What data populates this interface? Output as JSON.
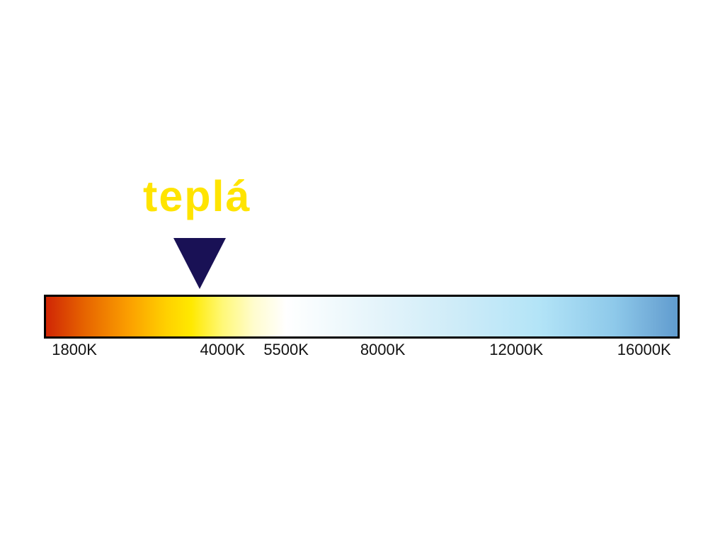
{
  "page": {
    "background_color": "#ffffff"
  },
  "annotation": {
    "label": "teplá",
    "label_color": "#ffe400",
    "pointer_color": "#191155",
    "pointer_pos_pct": 24.1
  },
  "scale": {
    "unit": "K",
    "bar_border_color": "#000000",
    "gradient_stops": [
      {
        "pos": 0,
        "color": "#d02605"
      },
      {
        "pos": 6,
        "color": "#e66300"
      },
      {
        "pos": 13,
        "color": "#fb9e00"
      },
      {
        "pos": 19,
        "color": "#ffd000"
      },
      {
        "pos": 23,
        "color": "#ffe900"
      },
      {
        "pos": 28,
        "color": "#fff878"
      },
      {
        "pos": 33,
        "color": "#fffccf"
      },
      {
        "pos": 38,
        "color": "#ffffff"
      },
      {
        "pos": 45,
        "color": "#f2fafd"
      },
      {
        "pos": 54,
        "color": "#e2f3fa"
      },
      {
        "pos": 66,
        "color": "#ccebf8"
      },
      {
        "pos": 78,
        "color": "#b3e4f7"
      },
      {
        "pos": 90,
        "color": "#8ec9ea"
      },
      {
        "pos": 97,
        "color": "#6fa9d6"
      },
      {
        "pos": 100,
        "color": "#609cd0"
      }
    ],
    "ticks": [
      {
        "label": "1800K",
        "pos_pct": 4.8
      },
      {
        "label": "4000K",
        "pos_pct": 28.1
      },
      {
        "label": "5500K",
        "pos_pct": 38.1
      },
      {
        "label": "8000K",
        "pos_pct": 53.3
      },
      {
        "label": "12000K",
        "pos_pct": 74.3
      },
      {
        "label": "16000K",
        "pos_pct": 94.4
      }
    ]
  }
}
